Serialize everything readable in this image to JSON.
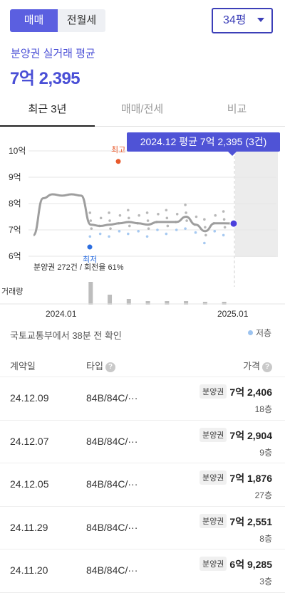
{
  "top": {
    "tabs": [
      {
        "label": "매매",
        "active": true
      },
      {
        "label": "전월세",
        "active": false
      }
    ],
    "size_select": "34평"
  },
  "summary": {
    "label": "분양권 실거래 평균",
    "price": "7억 2,395"
  },
  "period_tabs": [
    {
      "label": "최근 3년",
      "active": true
    },
    {
      "label": "매매/전세",
      "active": false
    },
    {
      "label": "비교",
      "active": false
    }
  ],
  "chart": {
    "tooltip": "2024.12 평균 7억 2,395 (3건)",
    "y_tick_labels": [
      "10억",
      "9억",
      "8억",
      "7억",
      "6억"
    ],
    "x_tick_labels": [
      "2024.01",
      "2025.01"
    ],
    "max_label": "최고",
    "min_label": "최저",
    "volume_label": "거래량",
    "note": "분양권 272건 / 회전율 61%"
  },
  "chart_data": {
    "type": "line",
    "ylim": [
      6,
      10
    ],
    "unit": "억",
    "series": [
      {
        "values": [
          6.8,
          8.2,
          8.35,
          8.3,
          8.35,
          8.3,
          7.2,
          7.15,
          7.2,
          7.25,
          7.3,
          7.25,
          7.2,
          7.3,
          7.3,
          7.3,
          7.5,
          7.2,
          6.95,
          7.25,
          7.25,
          7.24
        ]
      }
    ],
    "highlight": {
      "period": "2024.12",
      "value": 7.24
    },
    "max_point": {
      "value": 9.6
    },
    "min_point": {
      "value": 6.35
    },
    "volume": [
      0,
      0,
      0,
      0,
      0,
      0,
      32,
      0,
      14,
      0,
      8,
      0,
      5,
      0,
      5,
      0,
      5,
      0,
      4,
      0,
      4,
      0
    ]
  },
  "source": "국토교통부에서 38분 전 확인",
  "legend": "저층",
  "table": {
    "headers": {
      "date": "계약일",
      "type": "타입",
      "price": "가격",
      "help_icon": "?"
    },
    "rows": [
      {
        "date": "24.12.09",
        "type": "84B/84C/···",
        "badge": "분양권",
        "price": "7억 2,406",
        "floor": "18층"
      },
      {
        "date": "24.12.07",
        "type": "84B/84C/···",
        "badge": "분양권",
        "price": "7억 2,904",
        "floor": "9층"
      },
      {
        "date": "24.12.05",
        "type": "84B/84C/···",
        "badge": "분양권",
        "price": "7억 1,876",
        "floor": "27층"
      },
      {
        "date": "24.11.29",
        "type": "84B/84C/···",
        "badge": "분양권",
        "price": "7억 2,551",
        "floor": "8층"
      },
      {
        "date": "24.11.20",
        "type": "84B/84C/···",
        "badge": "분양권",
        "price": "6억 9,285",
        "floor": "3층"
      }
    ]
  },
  "colors": {
    "accent": "#5b5fe0",
    "max_point": "#e85a2c",
    "min_point": "#2c6ee0",
    "line": "#9e9e9e"
  }
}
